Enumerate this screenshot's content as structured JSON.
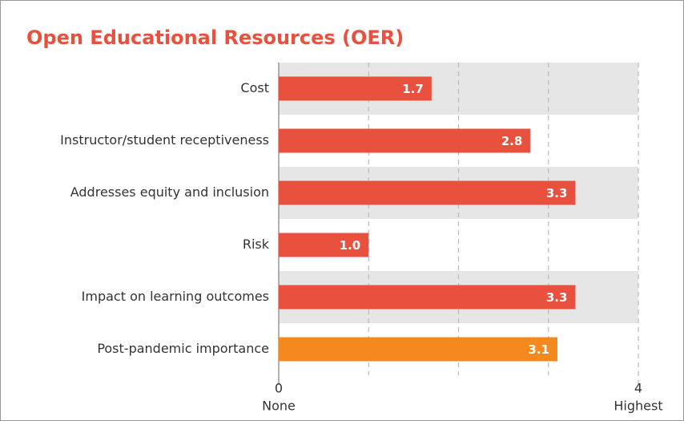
{
  "chart_data": {
    "type": "barh",
    "title": "Open Educational Resources (OER)",
    "categories": [
      "Cost",
      "Instructor/student receptiveness",
      "Addresses equity and inclusion",
      "Risk",
      "Impact on learning outcomes",
      "Post-pandemic importance"
    ],
    "values": [
      1.7,
      2.8,
      3.3,
      1.0,
      3.3,
      3.1
    ],
    "value_labels": [
      "1.7",
      "2.8",
      "3.3",
      "1.0",
      "3.3",
      "3.1"
    ],
    "colors": [
      "#e9513f",
      "#e9513f",
      "#e9513f",
      "#e9513f",
      "#e9513f",
      "#f48a1f"
    ],
    "xlim": [
      0,
      4
    ],
    "xticks": [
      0,
      {
        "value": 1,
        "label": null
      },
      {
        "value": 2,
        "label": null
      },
      {
        "value": 3,
        "label": null
      },
      4
    ],
    "x_end_labels": [
      "None",
      "Highest"
    ],
    "grid": true
  }
}
